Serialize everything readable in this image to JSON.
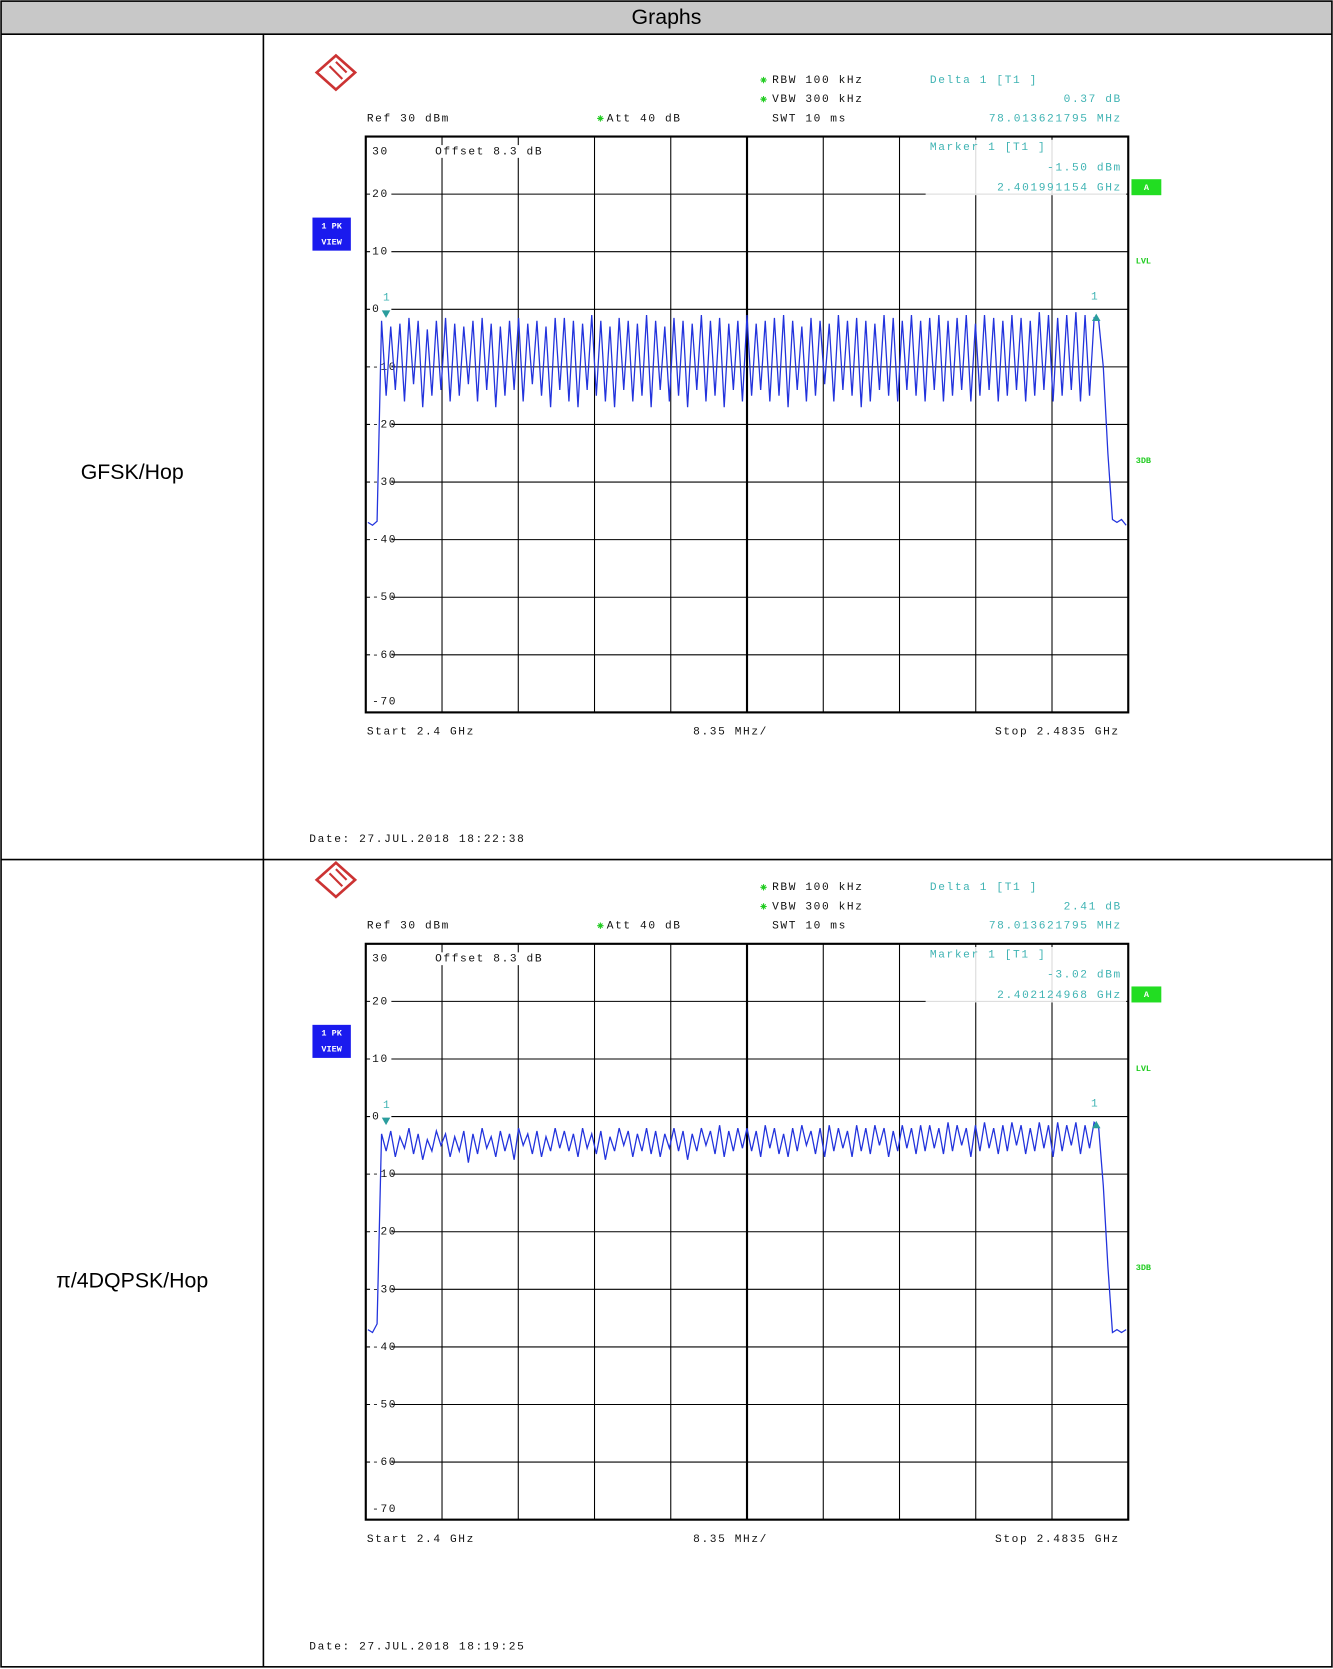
{
  "header": {
    "title": "Graphs"
  },
  "rows": [
    {
      "label": "GFSK/Hop",
      "plot": {
        "rbw": "RBW 100 kHz",
        "vbw": "VBW 300 kHz",
        "ref": "Ref 30 dBm",
        "att": "Att 40 dB",
        "swt": "SWT 10 ms",
        "delta": {
          "title": "Delta 1 [T1 ]",
          "value": "0.37 dB",
          "freq": "78.013621795 MHz"
        },
        "marker": {
          "title": "Marker 1 [T1 ]",
          "level": "-1.50 dBm",
          "freq": "2.401991154 GHz"
        },
        "offset": "Offset 8.3 dB",
        "badge": [
          "1 PK",
          "VIEW"
        ],
        "flags": [
          "A",
          "LVL",
          "3DB"
        ],
        "marker_labels": [
          "1",
          "1"
        ],
        "start": "Start 2.4 GHz",
        "span": "8.35 MHz/",
        "stop": "Stop 2.4835 GHz",
        "date": "Date: 27.JUL.2018 18:22:38",
        "ylim": [
          -70,
          30
        ],
        "yticks": [
          30,
          20,
          10,
          0,
          -10,
          -20,
          -30,
          -40,
          -50,
          -60,
          -70
        ],
        "trace": [
          -37,
          -37.5,
          -36.8,
          -2,
          -15,
          -3,
          -14,
          -2.5,
          -16,
          -1.5,
          -13,
          -2,
          -17,
          -3.5,
          -15,
          -2,
          -14,
          -1.5,
          -16,
          -2.5,
          -15,
          -3,
          -13,
          -2,
          -16,
          -1.5,
          -14,
          -2.5,
          -17,
          -3,
          -15,
          -2,
          -14,
          -1.5,
          -16,
          -2.5,
          -13,
          -2,
          -15,
          -3,
          -17,
          -1.5,
          -14,
          -1.5,
          -16,
          -2,
          -17,
          -2.5,
          -14,
          -1,
          -15,
          -2,
          -16,
          -3,
          -17,
          -1.5,
          -14,
          -2,
          -16,
          -2.5,
          -15,
          -1,
          -17,
          -2,
          -14,
          -3,
          -16,
          -1.5,
          -15,
          -2,
          -17,
          -2.5,
          -14,
          -1,
          -16,
          -2,
          -15,
          -1.5,
          -17,
          -2.5,
          -14,
          -2,
          -16,
          -1,
          -15,
          -2.5,
          -14,
          -2,
          -16,
          -1.5,
          -15,
          -1,
          -17,
          -2,
          -14,
          -3,
          -16,
          -1.5,
          -15,
          -2,
          -13,
          -2.5,
          -16,
          -1,
          -14,
          -2,
          -15,
          -1.5,
          -17,
          -2,
          -16,
          -2.5,
          -14,
          -1,
          -15,
          -1.5,
          -16,
          -2,
          -14,
          -1,
          -15,
          -2,
          -16,
          -1.5,
          -14,
          -1,
          -16,
          -2,
          -15,
          -1.5,
          -14,
          -1,
          -16,
          -2.5,
          -15,
          -1,
          -14,
          -1.5,
          -16,
          -2,
          -15,
          -1,
          -14,
          -1.5,
          -16,
          -2,
          -15,
          -0.5,
          -14,
          -1,
          -16,
          -1.5,
          -15,
          -1,
          -14,
          -0.5,
          -16,
          -1,
          -15,
          -1.5,
          -2,
          -10,
          -25,
          -36.5,
          -37,
          -36.5,
          -37.5
        ]
      }
    },
    {
      "label": "π/4DQPSK/Hop",
      "plot": {
        "rbw": "RBW 100 kHz",
        "vbw": "VBW 300 kHz",
        "ref": "Ref 30 dBm",
        "att": "Att 40 dB",
        "swt": "SWT 10 ms",
        "delta": {
          "title": "Delta 1 [T1 ]",
          "value": "2.41 dB",
          "freq": "78.013621795 MHz"
        },
        "marker": {
          "title": "Marker 1 [T1 ]",
          "level": "-3.02 dBm",
          "freq": "2.402124968 GHz"
        },
        "offset": "Offset 8.3 dB",
        "badge": [
          "1 PK",
          "VIEW"
        ],
        "flags": [
          "A",
          "LVL",
          "3DB"
        ],
        "marker_labels": [
          "1",
          "1"
        ],
        "start": "Start 2.4 GHz",
        "span": "8.35 MHz/",
        "stop": "Stop 2.4835 GHz",
        "date": "Date: 27.JUL.2018 18:19:25",
        "ylim": [
          -70,
          30
        ],
        "yticks": [
          30,
          20,
          10,
          0,
          -10,
          -20,
          -30,
          -40,
          -50,
          -60,
          -70
        ],
        "trace": [
          -37,
          -37.5,
          -36,
          -3,
          -6,
          -2.5,
          -7,
          -3.5,
          -5.5,
          -2,
          -6.5,
          -3,
          -7.5,
          -4,
          -6,
          -2.5,
          -5,
          -3,
          -7,
          -3.5,
          -6,
          -2.5,
          -8,
          -3,
          -6.5,
          -2,
          -5.5,
          -3.5,
          -7,
          -2.5,
          -6,
          -3,
          -7.5,
          -2,
          -5,
          -3,
          -6.5,
          -2.5,
          -7,
          -3.5,
          -6,
          -2,
          -5.5,
          -2.5,
          -6,
          -3,
          -7,
          -2,
          -5.5,
          -3,
          -6.5,
          -2.5,
          -7.5,
          -3.5,
          -6,
          -2,
          -5,
          -2.5,
          -7,
          -3,
          -6,
          -2,
          -6.5,
          -2.5,
          -7,
          -3,
          -5.5,
          -2,
          -6,
          -2.5,
          -7.5,
          -3,
          -6,
          -2,
          -5,
          -2.5,
          -6.5,
          -1.5,
          -7,
          -2.5,
          -6,
          -2,
          -5.5,
          -2,
          -6,
          -2.5,
          -7,
          -1.5,
          -5.5,
          -2,
          -6.5,
          -3,
          -7,
          -2,
          -6,
          -1.5,
          -5,
          -2.5,
          -6.5,
          -2,
          -7,
          -1.5,
          -6,
          -2,
          -5.5,
          -2.5,
          -7,
          -1.5,
          -6,
          -2,
          -6.5,
          -1.5,
          -5,
          -2,
          -7,
          -2.5,
          -6,
          -1.5,
          -5.5,
          -2,
          -6.5,
          -1.5,
          -6,
          -1.5,
          -5.5,
          -2,
          -6.5,
          -1,
          -6,
          -1.5,
          -5,
          -2,
          -7,
          -1.5,
          -6,
          -1,
          -5.5,
          -2,
          -6.5,
          -1.5,
          -6,
          -1,
          -5,
          -1.5,
          -6.5,
          -2,
          -6,
          -1,
          -5.5,
          -1.5,
          -7,
          -1,
          -6,
          -1.5,
          -5,
          -1,
          -6.5,
          -1.5,
          -5.5,
          -1,
          -2,
          -12,
          -26,
          -37.5,
          -37,
          -37.5,
          -37
        ]
      }
    }
  ]
}
